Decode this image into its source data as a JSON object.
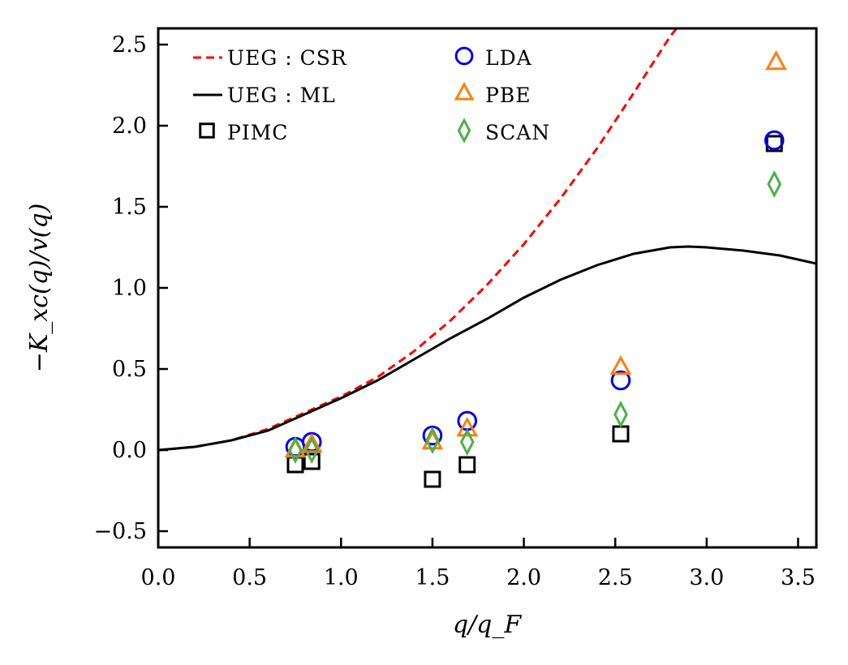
{
  "chart_data": {
    "type": "scatter",
    "title": "",
    "xlabel": "q/q_F",
    "ylabel": "−K_xc(q)/v(q)",
    "xlim": [
      0.0,
      3.6
    ],
    "ylim": [
      -0.6,
      2.6
    ],
    "xticks": [
      0.0,
      0.5,
      1.0,
      1.5,
      2.0,
      2.5,
      3.0,
      3.5
    ],
    "yticks": [
      -0.5,
      0.0,
      0.5,
      1.0,
      1.5,
      2.0,
      2.5
    ],
    "xtick_labels": [
      "0.0",
      "0.5",
      "1.0",
      "1.5",
      "2.0",
      "2.5",
      "3.0",
      "3.5"
    ],
    "ytick_labels": [
      "−0.5",
      "0.0",
      "0.5",
      "1.0",
      "1.5",
      "2.0",
      "2.5"
    ],
    "legend_position": "upper-left",
    "series": [
      {
        "name": "UEG :  CSR",
        "kind": "line",
        "style": "dashed",
        "color": "#ff0000",
        "x": [
          0.0,
          0.2,
          0.4,
          0.6,
          0.8,
          1.0,
          1.2,
          1.4,
          1.6,
          1.8,
          2.0,
          2.2,
          2.4,
          2.6,
          2.8,
          2.85
        ],
        "y": [
          0.0,
          0.02,
          0.06,
          0.13,
          0.23,
          0.33,
          0.45,
          0.61,
          0.8,
          1.02,
          1.27,
          1.55,
          1.86,
          2.2,
          2.55,
          2.62
        ]
      },
      {
        "name": "UEG :  ML",
        "kind": "line",
        "style": "solid",
        "color": "#000000",
        "x": [
          0.0,
          0.2,
          0.4,
          0.6,
          0.8,
          1.0,
          1.2,
          1.4,
          1.6,
          1.8,
          2.0,
          2.2,
          2.4,
          2.6,
          2.8,
          2.9,
          3.0,
          3.2,
          3.4,
          3.6
        ],
        "y": [
          0.0,
          0.02,
          0.06,
          0.12,
          0.22,
          0.32,
          0.43,
          0.56,
          0.69,
          0.81,
          0.94,
          1.05,
          1.14,
          1.21,
          1.25,
          1.255,
          1.25,
          1.23,
          1.2,
          1.15
        ]
      },
      {
        "name": "PIMC",
        "kind": "marker",
        "marker": "square",
        "color": "#000000",
        "x": [
          0.75,
          0.84,
          1.5,
          1.69,
          2.53,
          3.37
        ],
        "y": [
          -0.09,
          -0.07,
          -0.18,
          -0.09,
          0.1,
          1.89
        ]
      },
      {
        "name": "LDA",
        "kind": "marker",
        "marker": "circle",
        "color": "#0000ee",
        "x": [
          0.75,
          0.84,
          1.5,
          1.69,
          2.53,
          3.37
        ],
        "y": [
          0.02,
          0.05,
          0.09,
          0.18,
          0.43,
          1.91
        ]
      },
      {
        "name": "PBE",
        "kind": "marker",
        "marker": "triangle",
        "color": "#ff7f0e",
        "x": [
          0.75,
          0.84,
          1.5,
          1.69,
          2.53,
          3.38
        ],
        "y": [
          0.0,
          0.03,
          0.05,
          0.13,
          0.51,
          2.39
        ]
      },
      {
        "name": "SCAN",
        "kind": "marker",
        "marker": "diamond",
        "color": "#4daf4a",
        "x": [
          0.75,
          0.84,
          1.5,
          1.69,
          2.53,
          3.37
        ],
        "y": [
          0.0,
          0.0,
          0.06,
          0.05,
          0.22,
          1.64
        ]
      }
    ]
  }
}
